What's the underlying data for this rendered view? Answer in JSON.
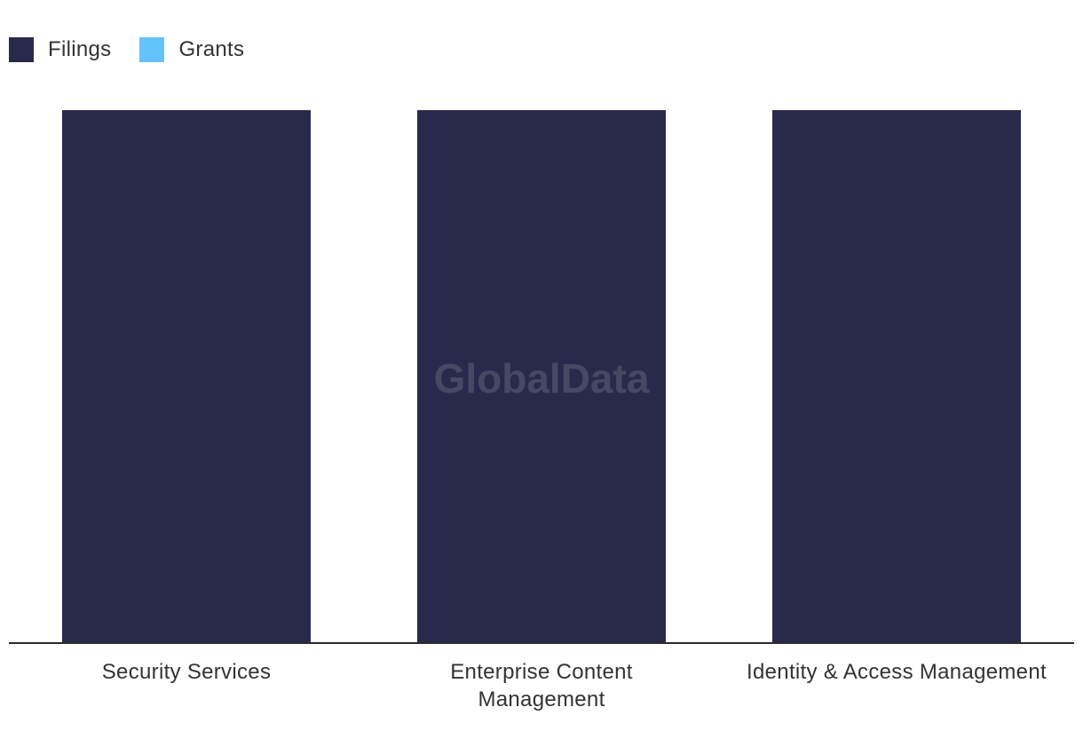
{
  "chart_data": {
    "type": "bar",
    "categories": [
      "Security Services",
      "Enterprise Content Management",
      "Identity & Access Management"
    ],
    "category_label_lines": [
      [
        "Security Services"
      ],
      [
        "Enterprise Content",
        "Management"
      ],
      [
        "Identity & Access Management"
      ]
    ],
    "series": [
      {
        "name": "Filings",
        "color": "#29294b",
        "values": [
          1,
          1,
          1
        ]
      },
      {
        "name": "Grants",
        "color": "#64c3fa",
        "values": [
          0,
          0,
          0
        ]
      }
    ],
    "ylim": [
      0,
      1
    ],
    "grid": false,
    "legend": "top-left",
    "xlabel": "",
    "ylabel": ""
  },
  "watermark": "GlobalData"
}
